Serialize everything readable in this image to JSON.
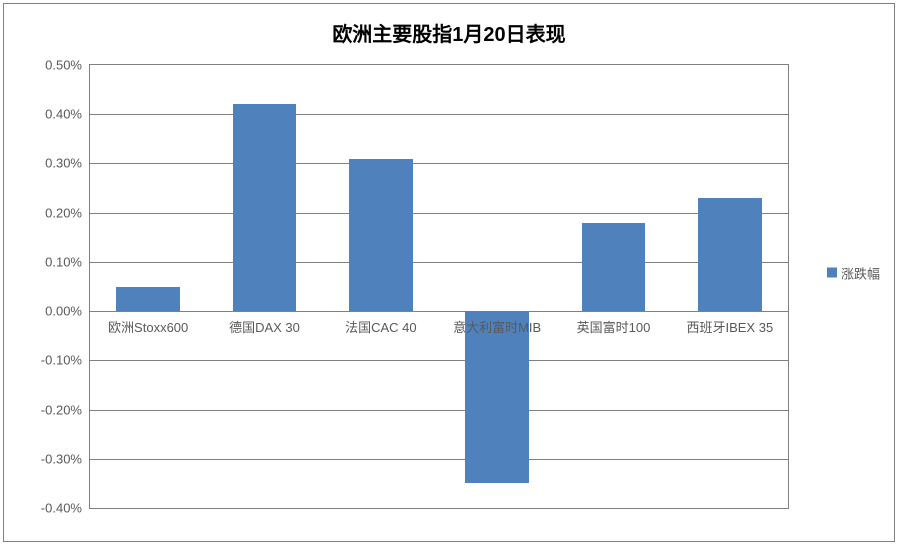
{
  "chart": {
    "type": "bar",
    "title": "欧洲主要股指1月20日表现",
    "title_fontsize": 20,
    "title_color": "#000000",
    "categories": [
      "欧洲Stoxx600",
      "德国DAX 30",
      "法国CAC 40",
      "意大利富时MIB",
      "英国富时100",
      "西班牙IBEX 35"
    ],
    "values": [
      0.05,
      0.42,
      0.31,
      -0.35,
      0.18,
      0.23
    ],
    "series_name": "涨跌幅",
    "bar_color": "#4f81bd",
    "bar_width": 0.55,
    "ylim": [
      -0.4,
      0.5
    ],
    "ytick_step": 0.1,
    "y_tick_format": "0.00%",
    "y_ticks": [
      "-0.40%",
      "-0.30%",
      "-0.20%",
      "-0.10%",
      "0.00%",
      "0.10%",
      "0.20%",
      "0.30%",
      "0.40%",
      "0.50%"
    ],
    "grid_color": "#808080",
    "background_color": "#ffffff",
    "border_color": "#808080",
    "axis_label_color": "#595959",
    "axis_label_fontsize": 13,
    "category_label_fontsize": 13,
    "legend_position": "right",
    "legend_fontsize": 13,
    "legend_swatch_color": "#4f81bd"
  }
}
